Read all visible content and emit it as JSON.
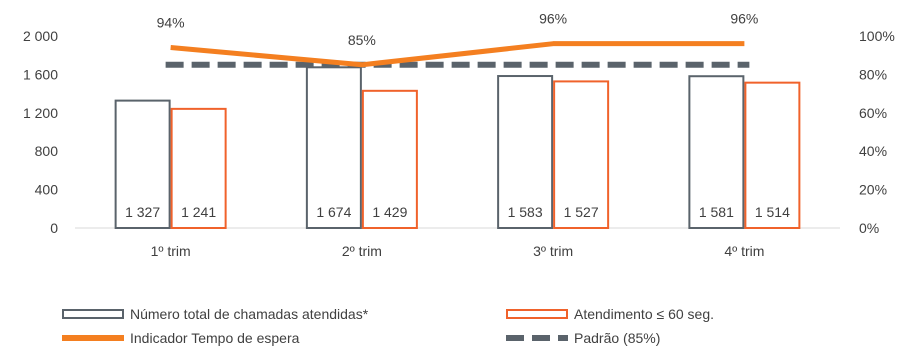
{
  "chart_data": {
    "type": "bar",
    "categories": [
      "1º trim",
      "2º trim",
      "3º trim",
      "4º trim"
    ],
    "y_left": {
      "ticks": [
        "0",
        "400",
        "800",
        "1 200",
        "1 600",
        "2 000"
      ],
      "min": 0,
      "max": 2000
    },
    "y_right": {
      "ticks": [
        "0%",
        "20%",
        "40%",
        "60%",
        "80%",
        "100%"
      ],
      "min": 0,
      "max": 100
    },
    "series": [
      {
        "name": "Número total de chamadas atendidas*",
        "kind": "bar",
        "axis": "left",
        "values": [
          1327,
          1674,
          1583,
          1581
        ],
        "labels": [
          "1 327",
          "1 674",
          "1 583",
          "1 581"
        ],
        "color": "#5a636b"
      },
      {
        "name": "Atendimento ≤ 60 seg.",
        "kind": "bar",
        "axis": "left",
        "values": [
          1241,
          1429,
          1527,
          1514
        ],
        "labels": [
          "1 241",
          "1 429",
          "1 527",
          "1 514"
        ],
        "color": "#f0622b"
      },
      {
        "name": "Indicador Tempo de espera",
        "kind": "line",
        "axis": "right",
        "values": [
          94,
          85,
          96,
          96
        ],
        "labels": [
          "94%",
          "85%",
          "96%",
          "96%"
        ],
        "color": "#f47f20"
      },
      {
        "name": "Padrão (85%)",
        "kind": "dashed-line",
        "axis": "right",
        "values": [
          85,
          85,
          85,
          85
        ],
        "color": "#5a636b"
      }
    ],
    "grid": false,
    "legend_position": "bottom"
  }
}
